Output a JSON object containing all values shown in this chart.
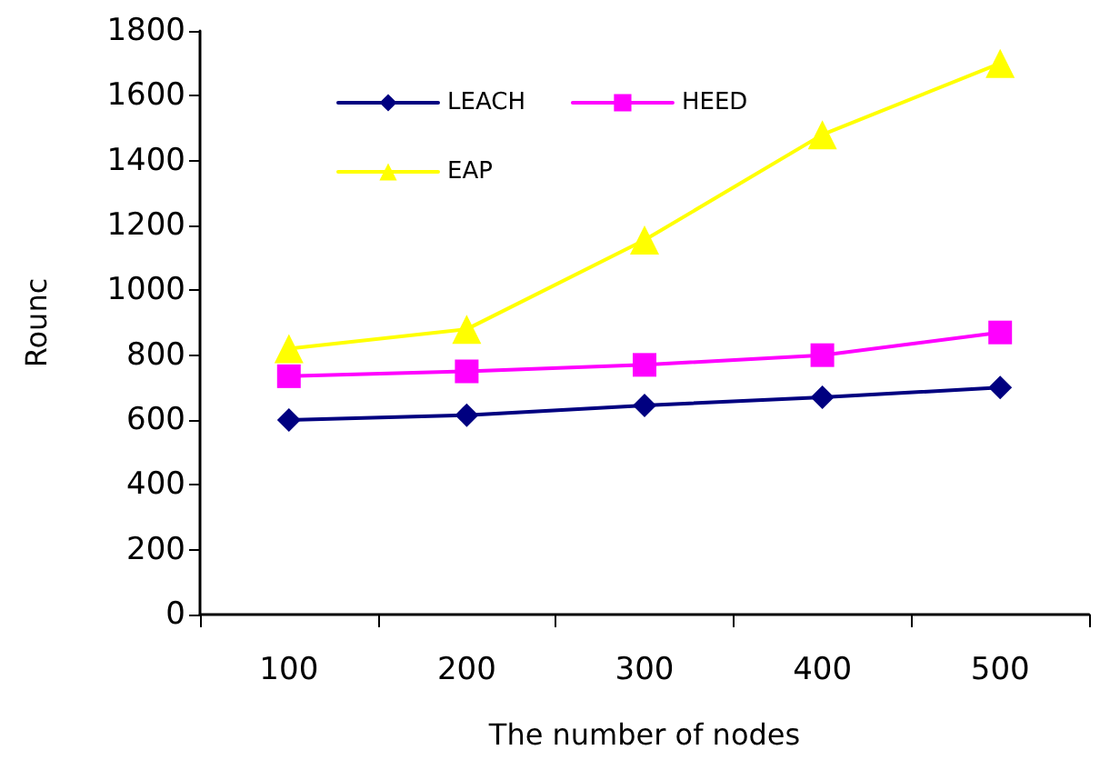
{
  "chart_data": {
    "type": "line",
    "xlabel": "The number of nodes",
    "ylabel": "Rounc",
    "categories": [
      "100",
      "200",
      "300",
      "400",
      "500"
    ],
    "series": [
      {
        "name": "LEACH",
        "color": "#000080",
        "marker": "diamond",
        "values": [
          600,
          615,
          645,
          670,
          700
        ]
      },
      {
        "name": "HEED",
        "color": "#ff00ff",
        "marker": "square",
        "values": [
          735,
          750,
          770,
          800,
          870
        ]
      },
      {
        "name": "EAP",
        "color": "#ffff00",
        "marker": "triangle",
        "values": [
          820,
          880,
          1155,
          1480,
          1700
        ]
      }
    ],
    "ylim": [
      0,
      1800
    ],
    "yticks": [
      0,
      200,
      400,
      600,
      800,
      1000,
      1200,
      1400,
      1600,
      1800
    ],
    "grid": false,
    "legend": "top left"
  }
}
